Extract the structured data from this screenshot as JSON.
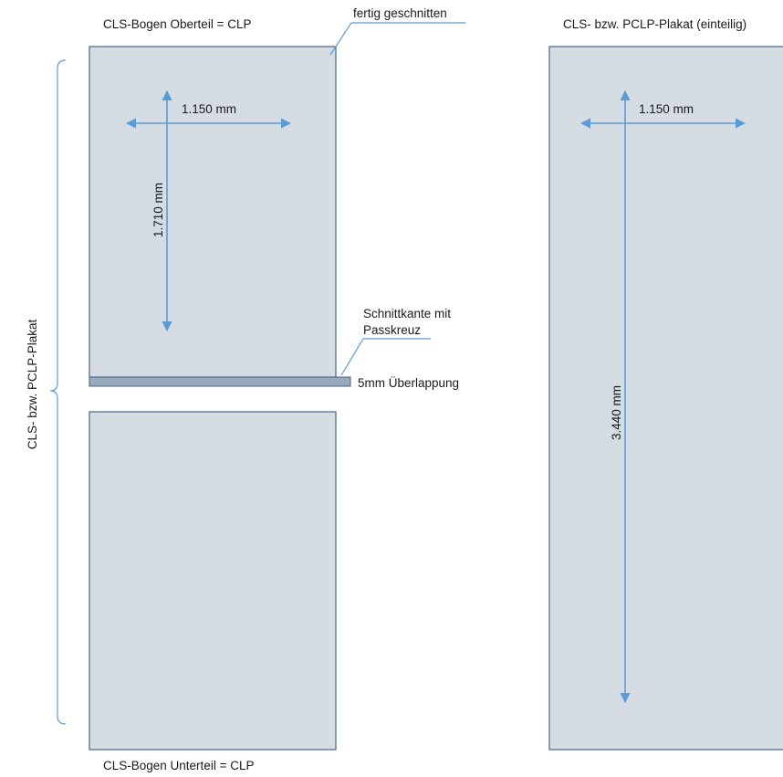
{
  "labels": {
    "top_sheet": "CLS-Bogen Oberteil = CLP",
    "bottom_sheet": "CLS-Bogen Unterteil = CLP",
    "finished_cut": "fertig geschnitten",
    "cut_edge_line1": "Schnittkante mit",
    "cut_edge_line2": "Passkreuz",
    "overlap": "5mm Überlappung",
    "two_part_poster": "CLS- bzw. PCLP-Plakat",
    "one_piece_poster": "CLS- bzw. PCLP-Plakat (einteilig)"
  },
  "dimensions": {
    "left_width": "1.150 mm",
    "left_height": "1.710 mm",
    "right_width": "1.150 mm",
    "right_height": "3.440 mm"
  },
  "colors": {
    "sheet_fill": "#d6dce4",
    "sheet_stroke": "#4a6384",
    "overlap_strip": "#9aaabd",
    "arrows": "#5b9bd5"
  }
}
